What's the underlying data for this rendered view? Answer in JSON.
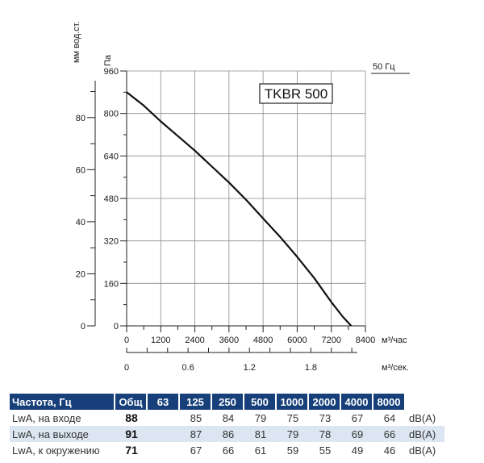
{
  "chart_data": {
    "type": "line",
    "title": "TKBR 500",
    "frequency_label": "50 Гц",
    "y_primary": {
      "label": "Па",
      "min": 0,
      "max": 960,
      "ticks": [
        "0",
        "160",
        "320",
        "480",
        "640",
        "800",
        "960"
      ]
    },
    "y_secondary": {
      "label": "мм вод.ст.",
      "min": 0,
      "max": 97.9,
      "ticks": [
        "0",
        "20",
        "40",
        "60",
        "80"
      ]
    },
    "x_primary": {
      "label": "м³/час",
      "min": 0,
      "max": 8400,
      "ticks": [
        "0",
        "1200",
        "2400",
        "3600",
        "4800",
        "6000",
        "7200",
        "8400"
      ]
    },
    "x_secondary": {
      "label": "м³/сек.",
      "min": 0,
      "max": 2.333,
      "ticks": [
        "0",
        "0.6",
        "1.2",
        "1.8"
      ]
    },
    "grid": true,
    "series": [
      {
        "x": [
          0,
          600,
          1200,
          1800,
          2400,
          3000,
          3600,
          4200,
          4800,
          5400,
          6000,
          6600,
          7200,
          7600,
          7900
        ],
        "y": [
          880,
          830,
          770,
          715,
          660,
          600,
          540,
          475,
          405,
          335,
          260,
          180,
          90,
          35,
          0
        ]
      }
    ]
  },
  "noise_table": {
    "headers": [
      "Частота, Гц",
      "Общ",
      "63",
      "125",
      "250",
      "500",
      "1000",
      "2000",
      "4000",
      "8000",
      ""
    ],
    "rows": [
      {
        "label": "LwA, на входе",
        "total": "88",
        "values": [
          "",
          "85",
          "84",
          "79",
          "75",
          "73",
          "67",
          "64"
        ],
        "unit": "dB(A)"
      },
      {
        "label": "LwA, на выходе",
        "total": "91",
        "values": [
          "",
          "87",
          "86",
          "81",
          "79",
          "78",
          "69",
          "66"
        ],
        "unit": "dB(A)"
      },
      {
        "label": "LwA, к окружению",
        "total": "71",
        "values": [
          "",
          "67",
          "66",
          "61",
          "59",
          "55",
          "49",
          "46"
        ],
        "unit": "dB(A)"
      }
    ]
  }
}
